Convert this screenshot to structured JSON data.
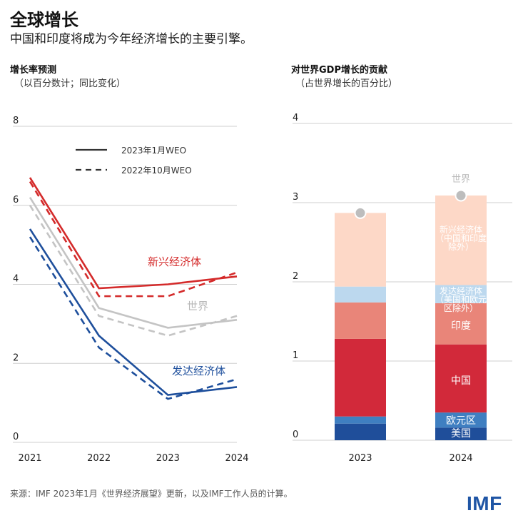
{
  "header": {
    "title": "全球增长",
    "subtitle": "中国和印度将成为今年经济增长的主要引擎。"
  },
  "left_panel": {
    "title": "增长率预测",
    "subtitle": "（以百分数计；同比变化）"
  },
  "right_panel": {
    "title": "对世界GDP增长的贡献",
    "subtitle": "（占世界增长的百分比）"
  },
  "footer": {
    "source": "来源：IMF 2023年1月《世界经济展望》更新，以及IMF工作人员的计算。",
    "logo": "IMF"
  },
  "colors": {
    "emerging": "#d42a2a",
    "world": "#c4c4c4",
    "advanced": "#1e4f9c",
    "grid": "#cccccc"
  },
  "chart_data": [
    {
      "type": "line",
      "title": "增长率预测",
      "x": [
        2021,
        2022,
        2023,
        2024
      ],
      "x_tick_labels": [
        "2021",
        "2022",
        "2023",
        "2024"
      ],
      "ylim": [
        0,
        8
      ],
      "y_ticks": [
        0,
        2,
        4,
        6,
        8
      ],
      "legend": [
        {
          "label": "2023年1月WEO",
          "style": "solid"
        },
        {
          "label": "2022年10月WEO",
          "style": "dashed"
        }
      ],
      "series": [
        {
          "name": "新兴经济体",
          "color": "#d42a2a",
          "style": "solid",
          "values": [
            6.7,
            3.9,
            4.0,
            4.2
          ]
        },
        {
          "name": "新兴经济体",
          "color": "#d42a2a",
          "style": "dashed",
          "values": [
            6.6,
            3.7,
            3.7,
            4.3
          ]
        },
        {
          "name": "世界",
          "color": "#c4c4c4",
          "style": "solid",
          "values": [
            6.2,
            3.4,
            2.9,
            3.1
          ]
        },
        {
          "name": "世界",
          "color": "#c4c4c4",
          "style": "dashed",
          "values": [
            6.0,
            3.2,
            2.7,
            3.2
          ]
        },
        {
          "name": "发达经济体",
          "color": "#1e4f9c",
          "style": "solid",
          "values": [
            5.4,
            2.7,
            1.2,
            1.4
          ]
        },
        {
          "name": "发达经济体",
          "color": "#1e4f9c",
          "style": "dashed",
          "values": [
            5.2,
            2.4,
            1.1,
            1.6
          ]
        }
      ],
      "annotations": [
        {
          "text": "新兴经济体",
          "color": "#d42a2a"
        },
        {
          "text": "世界",
          "color": "#b8b8b8"
        },
        {
          "text": "发达经济体",
          "color": "#1e4f9c"
        }
      ]
    },
    {
      "type": "bar",
      "stacked": true,
      "title": "对世界GDP增长的贡献",
      "categories": [
        "2023",
        "2024"
      ],
      "ylim": [
        0,
        4
      ],
      "y_ticks": [
        0,
        1,
        2,
        3,
        4
      ],
      "series": [
        {
          "name": "美国",
          "color": "#1f4e9a",
          "values": [
            0.21,
            0.16
          ]
        },
        {
          "name": "欧元区",
          "color": "#3f7fc1",
          "values": [
            0.09,
            0.19
          ]
        },
        {
          "name": "中国",
          "color": "#d2293a",
          "values": [
            0.98,
            0.86
          ]
        },
        {
          "name": "印度",
          "color": "#e98579",
          "values": [
            0.46,
            0.52
          ]
        },
        {
          "name": "发达经济体（美国和欧元区除外）",
          "color": "#bcd8ee",
          "values": [
            0.2,
            0.23
          ]
        },
        {
          "name": "新兴经济体（中国和印度除外）",
          "color": "#fdd8c7",
          "values": [
            0.93,
            1.13
          ]
        }
      ],
      "world_marker": {
        "name": "世界",
        "values": [
          2.87,
          3.09
        ],
        "color": "#bdbdbd"
      },
      "bar_labels_2024": [
        "美国",
        "欧元区",
        "中国",
        "印度",
        "发达经济体",
        "（美国和欧元",
        "区除外）",
        "新兴经济体",
        "（中国和印度",
        "除外）",
        "世界"
      ]
    }
  ]
}
